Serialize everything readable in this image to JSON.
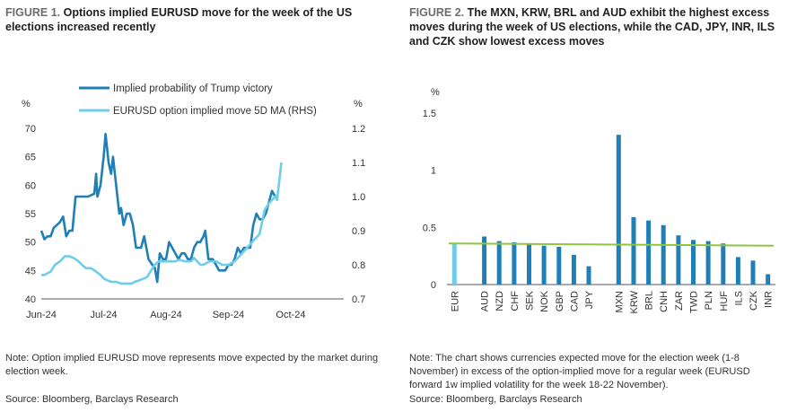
{
  "figure1": {
    "label": "FIGURE 1.",
    "title": "Options implied EURUSD move for the week of the US elections increased recently",
    "note": "Note: Option implied EURUSD move represents move expected by the market during election week.",
    "source": "Source: Bloomberg, Barclays Research",
    "chart_data": {
      "type": "line",
      "left_unit": "%",
      "right_unit": "%",
      "left_ylim": [
        40,
        70
      ],
      "left_ticks": [
        40,
        45,
        50,
        55,
        60,
        65,
        70
      ],
      "right_ylim": [
        0.7,
        1.2
      ],
      "right_ticks": [
        "0.7",
        "0.8",
        "0.9",
        "1.0",
        "1.1",
        "1.2"
      ],
      "x_ticks": [
        {
          "label": "Jun-24",
          "x": 0
        },
        {
          "label": "Jul-24",
          "x": 1
        },
        {
          "label": "Aug-24",
          "x": 2
        },
        {
          "label": "Sep-24",
          "x": 3
        },
        {
          "label": "Oct-24",
          "x": 4
        }
      ],
      "x_note": "x values are in months since Jun-24 (0 = Jun-24, 1 = Jul-24, ...)",
      "xlim": [
        0,
        4.85
      ],
      "series": [
        {
          "name": "Implied probability of Trump victory",
          "axis": "left",
          "color": "#1f7fb6",
          "points": [
            [
              0,
              52
            ],
            [
              0.05,
              50.5
            ],
            [
              0.1,
              51
            ],
            [
              0.15,
              51
            ],
            [
              0.2,
              52.5
            ],
            [
              0.3,
              53.5
            ],
            [
              0.35,
              54.5
            ],
            [
              0.4,
              51
            ],
            [
              0.45,
              52
            ],
            [
              0.5,
              52
            ],
            [
              0.55,
              58
            ],
            [
              0.65,
              58
            ],
            [
              0.75,
              58
            ],
            [
              0.85,
              58.5
            ],
            [
              0.88,
              62
            ],
            [
              0.9,
              58
            ],
            [
              0.95,
              60
            ],
            [
              1.0,
              65
            ],
            [
              1.03,
              69
            ],
            [
              1.08,
              64
            ],
            [
              1.12,
              62
            ],
            [
              1.15,
              65
            ],
            [
              1.2,
              60
            ],
            [
              1.25,
              55
            ],
            [
              1.28,
              56
            ],
            [
              1.32,
              53
            ],
            [
              1.37,
              55
            ],
            [
              1.42,
              55
            ],
            [
              1.47,
              53
            ],
            [
              1.52,
              49
            ],
            [
              1.6,
              49
            ],
            [
              1.65,
              51
            ],
            [
              1.72,
              47
            ],
            [
              1.78,
              46
            ],
            [
              1.82,
              45.5
            ],
            [
              1.86,
              43
            ],
            [
              1.9,
              48
            ],
            [
              1.95,
              47
            ],
            [
              2.0,
              47
            ],
            [
              2.05,
              50
            ],
            [
              2.1,
              49
            ],
            [
              2.2,
              47
            ],
            [
              2.25,
              48
            ],
            [
              2.3,
              48
            ],
            [
              2.35,
              47
            ],
            [
              2.4,
              47
            ],
            [
              2.45,
              49
            ],
            [
              2.5,
              50
            ],
            [
              2.55,
              50
            ],
            [
              2.6,
              51
            ],
            [
              2.63,
              52
            ],
            [
              2.68,
              47
            ],
            [
              2.75,
              47
            ],
            [
              2.8,
              46
            ],
            [
              2.85,
              45
            ],
            [
              2.95,
              45
            ],
            [
              3.0,
              46
            ],
            [
              3.05,
              46
            ],
            [
              3.1,
              47
            ],
            [
              3.15,
              49
            ],
            [
              3.2,
              48
            ],
            [
              3.25,
              49
            ],
            [
              3.3,
              49
            ],
            [
              3.35,
              49
            ],
            [
              3.4,
              53
            ],
            [
              3.45,
              55
            ],
            [
              3.5,
              54
            ],
            [
              3.55,
              54
            ],
            [
              3.6,
              55
            ],
            [
              3.65,
              57
            ],
            [
              3.7,
              59
            ],
            [
              3.75,
              58
            ],
            [
              3.8,
              58
            ]
          ]
        },
        {
          "name": "EURUSD option implied move 5D MA (RHS)",
          "axis": "right",
          "color": "#6fcdea",
          "points": [
            [
              0,
              0.77
            ],
            [
              0.05,
              0.77
            ],
            [
              0.1,
              0.775
            ],
            [
              0.15,
              0.78
            ],
            [
              0.22,
              0.8
            ],
            [
              0.3,
              0.81
            ],
            [
              0.38,
              0.825
            ],
            [
              0.45,
              0.825
            ],
            [
              0.52,
              0.82
            ],
            [
              0.6,
              0.81
            ],
            [
              0.65,
              0.8
            ],
            [
              0.72,
              0.79
            ],
            [
              0.8,
              0.79
            ],
            [
              0.88,
              0.78
            ],
            [
              0.95,
              0.77
            ],
            [
              1.0,
              0.76
            ],
            [
              1.05,
              0.755
            ],
            [
              1.12,
              0.75
            ],
            [
              1.2,
              0.75
            ],
            [
              1.28,
              0.745
            ],
            [
              1.35,
              0.745
            ],
            [
              1.45,
              0.745
            ],
            [
              1.5,
              0.75
            ],
            [
              1.58,
              0.755
            ],
            [
              1.65,
              0.76
            ],
            [
              1.7,
              0.765
            ],
            [
              1.75,
              0.78
            ],
            [
              1.82,
              0.8
            ],
            [
              1.88,
              0.81
            ],
            [
              1.95,
              0.81
            ],
            [
              2.05,
              0.81
            ],
            [
              2.15,
              0.81
            ],
            [
              2.22,
              0.815
            ],
            [
              2.3,
              0.81
            ],
            [
              2.4,
              0.81
            ],
            [
              2.45,
              0.82
            ],
            [
              2.5,
              0.81
            ],
            [
              2.55,
              0.8
            ],
            [
              2.6,
              0.8
            ],
            [
              2.7,
              0.81
            ],
            [
              2.8,
              0.81
            ],
            [
              2.9,
              0.8
            ],
            [
              3.0,
              0.8
            ],
            [
              3.1,
              0.81
            ],
            [
              3.2,
              0.83
            ],
            [
              3.3,
              0.85
            ],
            [
              3.4,
              0.87
            ],
            [
              3.5,
              0.89
            ],
            [
              3.58,
              0.96
            ],
            [
              3.65,
              0.98
            ],
            [
              3.7,
              0.99
            ],
            [
              3.75,
              1.0
            ],
            [
              3.78,
              0.99
            ],
            [
              3.82,
              1.05
            ],
            [
              3.85,
              1.1
            ]
          ]
        }
      ]
    }
  },
  "figure2": {
    "label": "FIGURE 2.",
    "title": "The MXN, KRW, BRL and AUD exhibit the highest excess moves during the week of US elections, while the CAD, JPY, INR, ILS and CZK show lowest excess moves",
    "note": "Note: The chart shows currencies expected move for the election week (1-8 November) in excess of the option-implied move for a regular week (EURUSD forward 1w implied volatility for the week 18-22 November).",
    "source": "Source: Bloomberg, Barclays Research",
    "chart_data": {
      "type": "bar",
      "unit": "%",
      "ylim": [
        0,
        1.5
      ],
      "y_ticks": [
        "0",
        "0.5",
        "1",
        "1.5"
      ],
      "categories": [
        "EUR",
        "",
        "AUD",
        "NZD",
        "CHF",
        "SEK",
        "NOK",
        "GBP",
        "CAD",
        "JPY",
        "",
        "MXN",
        "KRW",
        "BRL",
        "CNH",
        "ZAR",
        "TWD",
        "PLN",
        "HUF",
        "ILS",
        "CZK",
        "INR"
      ],
      "values": [
        0.36,
        null,
        0.42,
        0.38,
        0.37,
        0.35,
        0.34,
        0.33,
        0.26,
        0.16,
        null,
        1.31,
        0.59,
        0.56,
        0.52,
        0.43,
        0.39,
        0.38,
        0.36,
        0.24,
        0.21,
        0.09
      ],
      "bar_colors": [
        "#6fcdea",
        null,
        "#1f7fb6",
        "#1f7fb6",
        "#1f7fb6",
        "#1f7fb6",
        "#1f7fb6",
        "#1f7fb6",
        "#1f7fb6",
        "#1f7fb6",
        null,
        "#1f7fb6",
        "#1f7fb6",
        "#1f7fb6",
        "#1f7fb6",
        "#1f7fb6",
        "#1f7fb6",
        "#1f7fb6",
        "#1f7fb6",
        "#1f7fb6",
        "#1f7fb6",
        "#1f7fb6"
      ],
      "reference_line": {
        "start": 0.36,
        "end": 0.34,
        "color": "#8dc63f"
      }
    }
  }
}
